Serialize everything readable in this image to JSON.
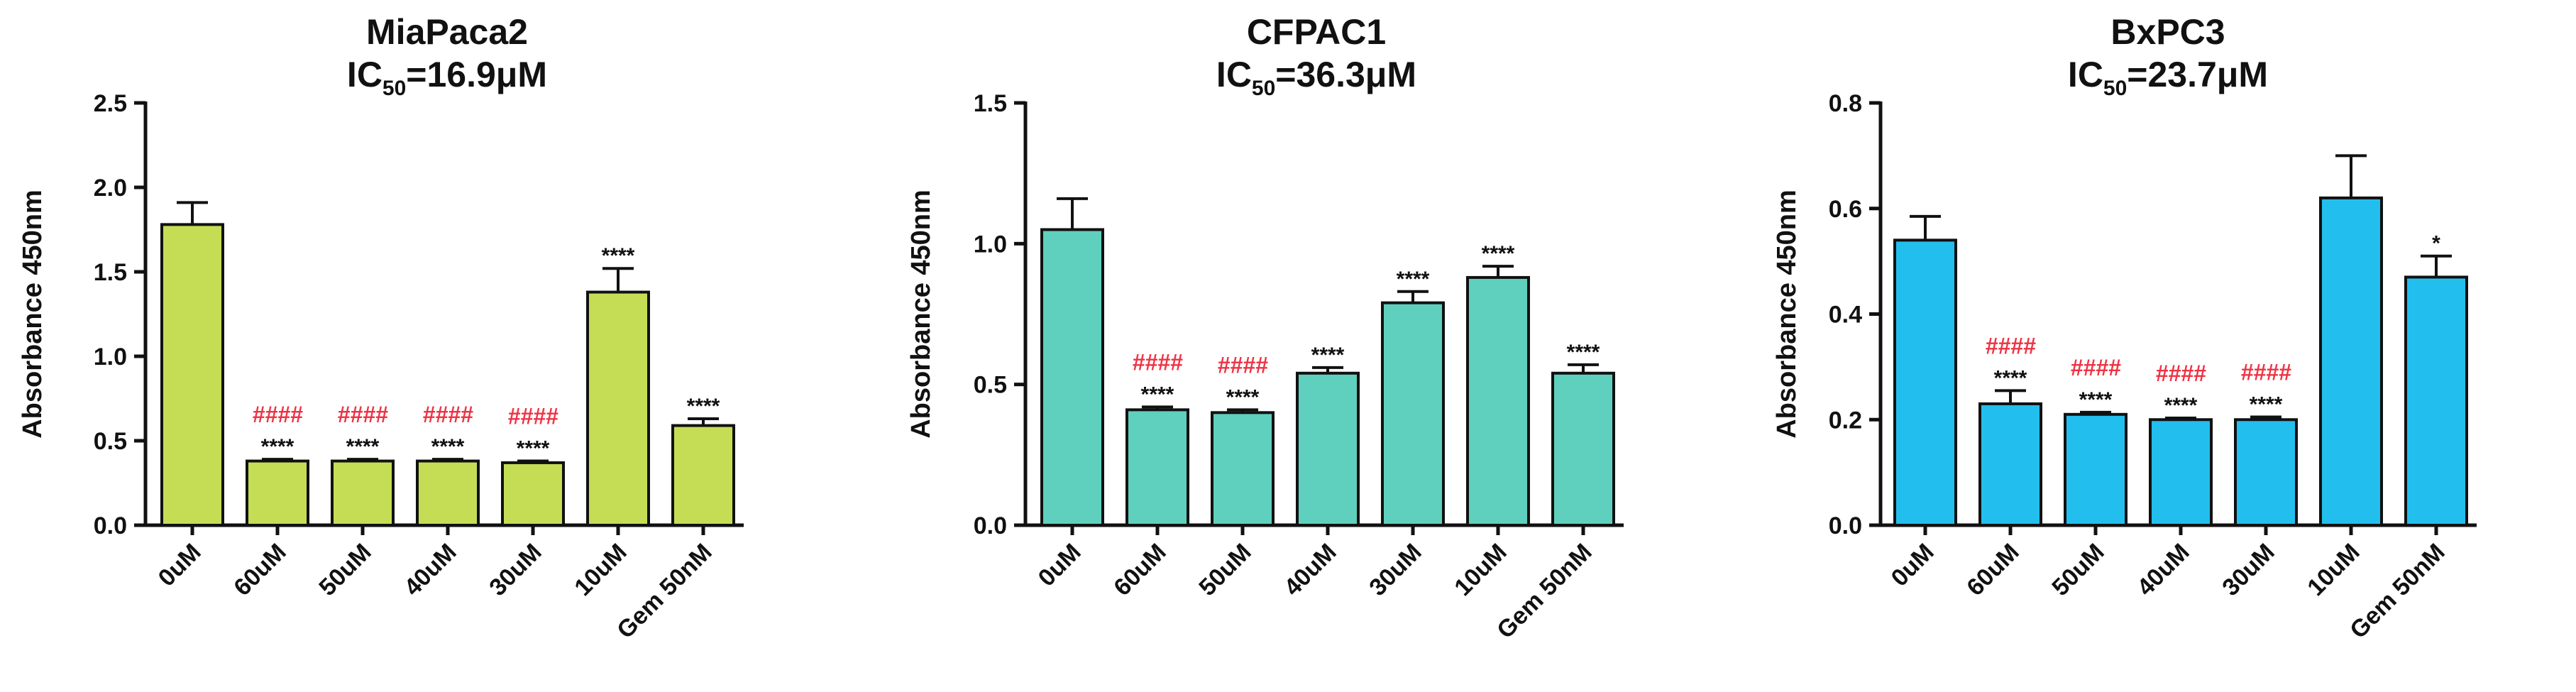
{
  "chart_data": [
    {
      "type": "bar",
      "title": "MiaPaca2",
      "subtitle": {
        "prefix": "IC",
        "sub": "50",
        "value": "=16.9μM"
      },
      "xlabel": "",
      "ylabel": "Absorbance 450nm",
      "ylim": [
        0,
        2.5
      ],
      "yticks": [
        "0.0",
        "0.5",
        "1.0",
        "1.5",
        "2.0",
        "2.5"
      ],
      "bar_color": "#c5dd55",
      "categories": [
        "0uM",
        "60uM",
        "50uM",
        "40uM",
        "30uM",
        "10uM",
        "Gem 50nM"
      ],
      "values": [
        1.78,
        0.38,
        0.38,
        0.38,
        0.37,
        1.38,
        0.59
      ],
      "errors": [
        0.13,
        0.01,
        0.01,
        0.01,
        0.01,
        0.14,
        0.04
      ],
      "annotations_black": [
        "",
        "****",
        "****",
        "****",
        "****",
        "****",
        "****"
      ],
      "annotations_red": [
        "",
        "####",
        "####",
        "####",
        "####",
        "",
        ""
      ],
      "grid": false,
      "legend": "none"
    },
    {
      "type": "bar",
      "title": "CFPAC1",
      "subtitle": {
        "prefix": "IC",
        "sub": "50",
        "value": "=36.3μM"
      },
      "xlabel": "",
      "ylabel": "Absorbance 450nm",
      "ylim": [
        0,
        1.5
      ],
      "yticks": [
        "0.0",
        "0.5",
        "1.0",
        "1.5"
      ],
      "bar_color": "#5fd0bd",
      "categories": [
        "0uM",
        "60uM",
        "50uM",
        "40uM",
        "30uM",
        "10uM",
        "Gem 50nM"
      ],
      "values": [
        1.05,
        0.41,
        0.4,
        0.54,
        0.79,
        0.88,
        0.54
      ],
      "errors": [
        0.11,
        0.01,
        0.01,
        0.02,
        0.04,
        0.04,
        0.03
      ],
      "annotations_black": [
        "",
        "****",
        "****",
        "****",
        "****",
        "****",
        "****"
      ],
      "annotations_red": [
        "",
        "####",
        "####",
        "",
        "",
        "",
        ""
      ],
      "grid": false,
      "legend": "none"
    },
    {
      "type": "bar",
      "title": "BxPC3",
      "subtitle": {
        "prefix": "IC",
        "sub": "50",
        "value": "=23.7μM"
      },
      "xlabel": "",
      "ylabel": "Absorbance 450nm",
      "ylim": [
        0,
        0.8
      ],
      "yticks": [
        "0.0",
        "0.2",
        "0.4",
        "0.6",
        "0.8"
      ],
      "bar_color": "#22bfee",
      "categories": [
        "0uM",
        "60uM",
        "50uM",
        "40uM",
        "30uM",
        "10uM",
        "Gem 50nM"
      ],
      "values": [
        0.54,
        0.23,
        0.21,
        0.2,
        0.2,
        0.62,
        0.47
      ],
      "errors": [
        0.045,
        0.025,
        0.004,
        0.003,
        0.005,
        0.08,
        0.04
      ],
      "annotations_black": [
        "",
        "****",
        "****",
        "****",
        "****",
        "",
        "*"
      ],
      "annotations_red": [
        "",
        "####",
        "####",
        "####",
        "####",
        "",
        ""
      ],
      "grid": false,
      "legend": "none"
    }
  ]
}
